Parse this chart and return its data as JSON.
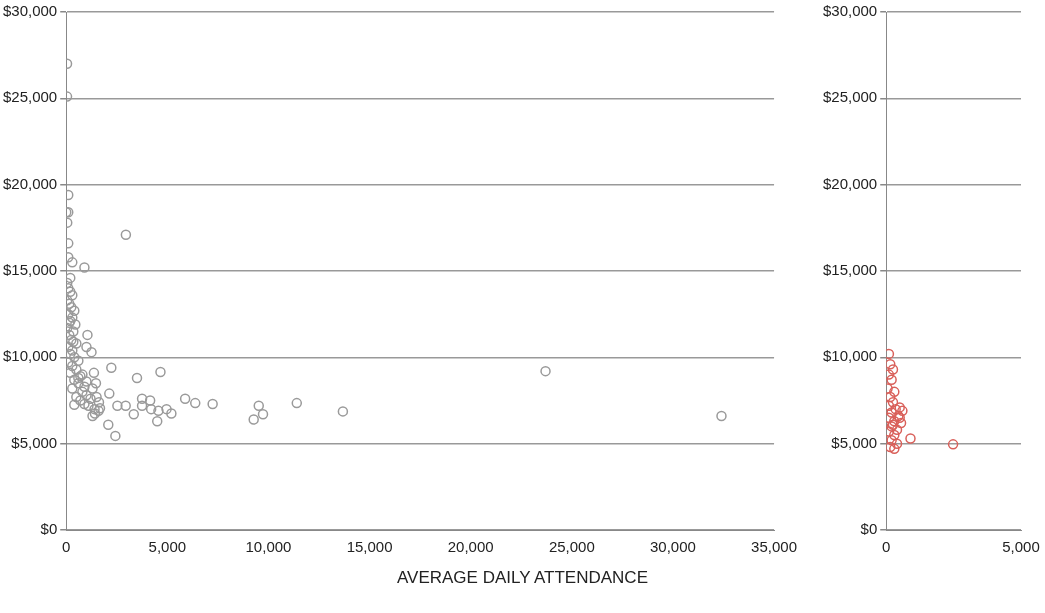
{
  "chart_data": [
    {
      "type": "scatter",
      "xlabel": "AVERAGE DAILY ATTENDANCE",
      "xlim": [
        0,
        35000
      ],
      "xticks": [
        {
          "value": 0,
          "label": "0"
        },
        {
          "value": 5000,
          "label": "5,000"
        },
        {
          "value": 10000,
          "label": "10,000"
        },
        {
          "value": 15000,
          "label": "15,000"
        },
        {
          "value": 20000,
          "label": "20,000"
        },
        {
          "value": 25000,
          "label": "25,000"
        },
        {
          "value": 30000,
          "label": "30,000"
        },
        {
          "value": 35000,
          "label": "35,000"
        }
      ],
      "ylim": [
        0,
        30000
      ],
      "yticks": [
        {
          "value": 0,
          "label": "$0"
        },
        {
          "value": 5000,
          "label": "$5,000"
        },
        {
          "value": 10000,
          "label": "$10,000"
        },
        {
          "value": 15000,
          "label": "$15,000"
        },
        {
          "value": 20000,
          "label": "$20,000"
        },
        {
          "value": 25000,
          "label": "$25,000"
        },
        {
          "value": 30000,
          "label": "$30,000"
        }
      ],
      "grid": "y",
      "marker": "circle",
      "legend": false,
      "series": [
        {
          "color": "#9a9a9a",
          "x": [
            40,
            40,
            100,
            100,
            0,
            50,
            100,
            100,
            300,
            900,
            2950,
            50,
            100,
            200,
            300,
            50,
            150,
            250,
            400,
            100,
            300,
            200,
            450,
            50,
            350,
            150,
            250,
            500,
            100,
            300,
            200,
            400,
            600,
            100,
            300,
            500,
            200,
            700,
            400,
            600,
            900,
            300,
            800,
            1000,
            500,
            1200,
            700,
            900,
            400,
            1100,
            1400,
            600,
            1300,
            1500,
            800,
            1000,
            1600,
            1300,
            200,
            150,
            350,
            1050,
            1000,
            1250,
            2230,
            3500,
            4660,
            2130,
            1370,
            1470,
            2530,
            2940,
            3340,
            3750,
            3750,
            4150,
            4200,
            4500,
            4560,
            4960,
            5200,
            5880,
            6380,
            7240,
            9270,
            9520,
            9730,
            2080,
            2430,
            1620,
            1670,
            1420,
            11400,
            13680,
            23700,
            32400
          ],
          "values": [
            27000,
            25100,
            19400,
            18400,
            18400,
            17800,
            16600,
            15800,
            15500,
            15200,
            17100,
            14300,
            14000,
            13800,
            13600,
            13300,
            13100,
            12900,
            12700,
            12500,
            12300,
            12100,
            11900,
            11700,
            11500,
            11300,
            11000,
            10800,
            10600,
            10400,
            10200,
            10000,
            9800,
            9700,
            9500,
            9300,
            9100,
            8900,
            8700,
            8500,
            8300,
            8200,
            8000,
            7800,
            7700,
            7600,
            7500,
            7300,
            7250,
            7200,
            7000,
            8800,
            8200,
            7700,
            9000,
            8600,
            6900,
            6600,
            14600,
            12000,
            10900,
            11300,
            10600,
            10300,
            9400,
            8800,
            9150,
            7900,
            9100,
            8500,
            7200,
            7200,
            6700,
            7600,
            7200,
            7500,
            7000,
            6300,
            6900,
            7000,
            6750,
            7600,
            7350,
            7300,
            6400,
            7200,
            6700,
            6100,
            5450,
            7400,
            7050,
            6750,
            7350,
            6870,
            9200,
            6600
          ]
        }
      ]
    },
    {
      "type": "scatter",
      "xlim": [
        0,
        5000
      ],
      "xticks": [
        {
          "value": 0,
          "label": "0"
        },
        {
          "value": 5000,
          "label": "5,000"
        }
      ],
      "ylim": [
        0,
        30000
      ],
      "yticks": [
        {
          "value": 0,
          "label": "$0"
        },
        {
          "value": 5000,
          "label": "$5,000"
        },
        {
          "value": 10000,
          "label": "$10,000"
        },
        {
          "value": 15000,
          "label": "$15,000"
        },
        {
          "value": 20000,
          "label": "$20,000"
        },
        {
          "value": 25000,
          "label": "$25,000"
        },
        {
          "value": 30000,
          "label": "$30,000"
        }
      ],
      "grid": "y",
      "marker": "circle",
      "legend": false,
      "series": [
        {
          "color": "#d9605a",
          "x": [
            100,
            150,
            250,
            100,
            200,
            50,
            300,
            150,
            250,
            100,
            350,
            200,
            450,
            100,
            300,
            550,
            200,
            400,
            100,
            600,
            500,
            300,
            200,
            400,
            150,
            300,
            900,
            2480,
            500,
            250
          ],
          "values": [
            10200,
            9600,
            9300,
            9000,
            8700,
            8200,
            8000,
            7700,
            7400,
            7200,
            7000,
            6800,
            6600,
            6500,
            6300,
            6200,
            6000,
            5800,
            5700,
            6900,
            7100,
            5500,
            5200,
            5000,
            4800,
            4700,
            5300,
            4960,
            6500,
            6100
          ]
        }
      ]
    }
  ]
}
